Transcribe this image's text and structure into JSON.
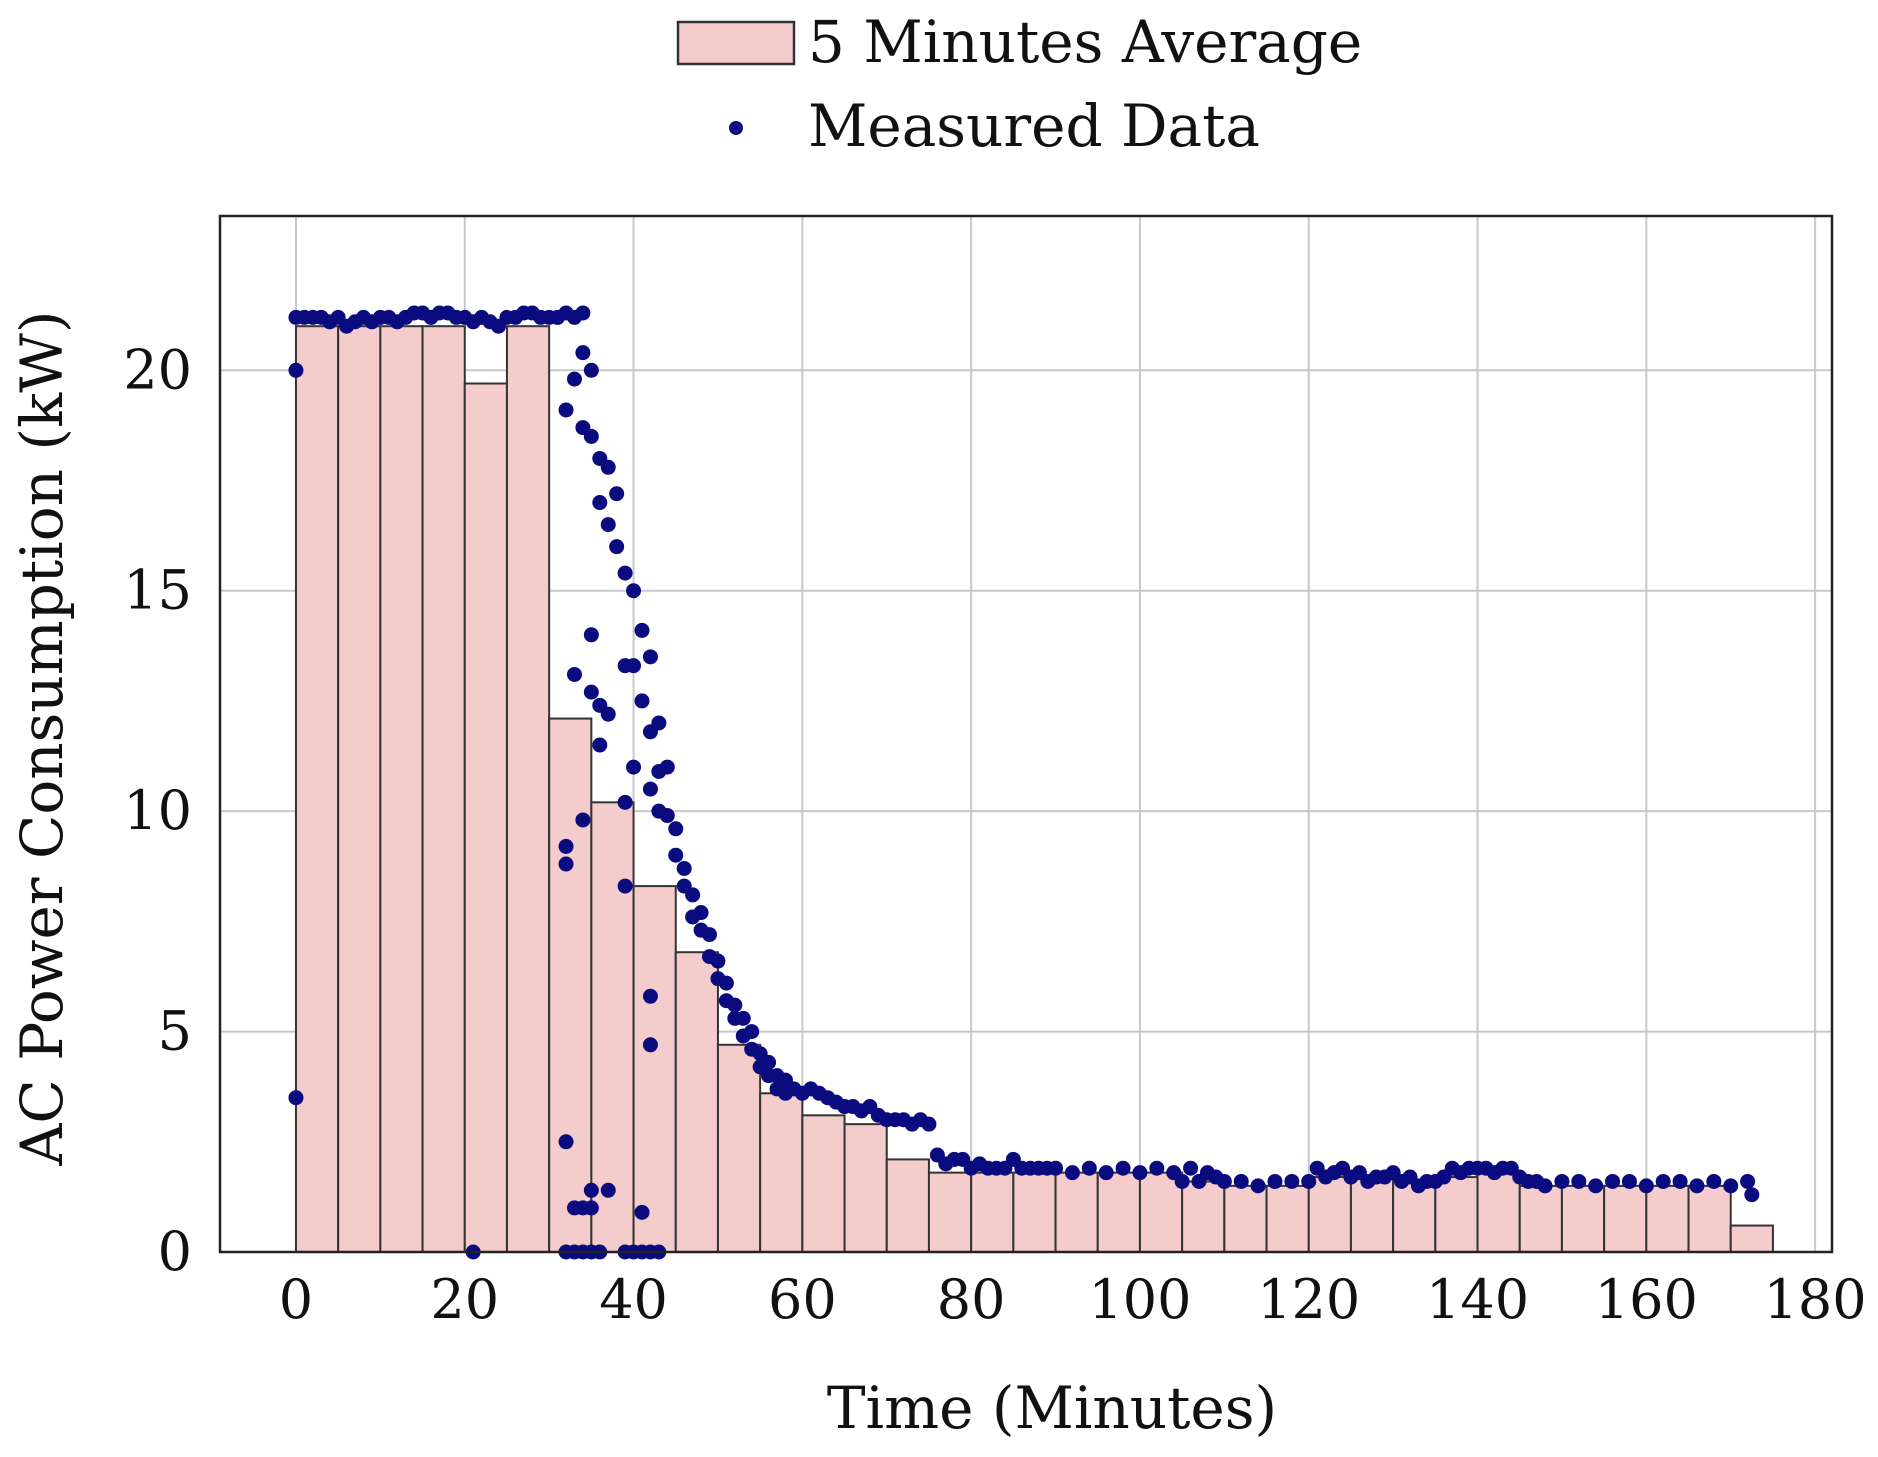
{
  "chart_data": {
    "type": "bar",
    "xlabel": "Time (Minutes)",
    "ylabel": "AC Power Consumption (kW)",
    "xlim": [
      -9,
      182
    ],
    "ylim": [
      0,
      23.5
    ],
    "grid": true,
    "legend_position": "top-center",
    "x_ticks": [
      0,
      20,
      40,
      60,
      80,
      100,
      120,
      140,
      160,
      180
    ],
    "y_ticks": [
      0,
      5,
      10,
      15,
      20
    ],
    "bar_width": 5,
    "colors": {
      "bar_fill": "#f4cccc",
      "bar_edge": "#333333",
      "dot": "#0b0b80"
    },
    "series": [
      {
        "name": "5 Minutes Average",
        "kind": "bar",
        "x_start": [
          0,
          5,
          10,
          15,
          20,
          25,
          30,
          35,
          40,
          45,
          50,
          55,
          60,
          65,
          70,
          75,
          80,
          85,
          90,
          95,
          100,
          105,
          110,
          115,
          120,
          125,
          130,
          135,
          140,
          145,
          150,
          155,
          160,
          165,
          170
        ],
        "values": [
          21.0,
          21.0,
          21.0,
          21.0,
          19.7,
          21.0,
          12.1,
          10.2,
          8.3,
          6.8,
          4.7,
          3.6,
          3.1,
          2.9,
          2.1,
          1.8,
          1.8,
          1.8,
          1.8,
          1.8,
          1.8,
          1.6,
          1.5,
          1.5,
          1.7,
          1.7,
          1.6,
          1.7,
          1.8,
          1.5,
          1.5,
          1.5,
          1.5,
          1.5,
          0.6
        ]
      },
      {
        "name": "Measured Data",
        "kind": "scatter",
        "points": [
          [
            0,
            21.2
          ],
          [
            0,
            20.0
          ],
          [
            0,
            3.5
          ],
          [
            1,
            21.2
          ],
          [
            2,
            21.2
          ],
          [
            3,
            21.2
          ],
          [
            4,
            21.1
          ],
          [
            5,
            21.2
          ],
          [
            6,
            21.0
          ],
          [
            7,
            21.1
          ],
          [
            8,
            21.2
          ],
          [
            9,
            21.1
          ],
          [
            10,
            21.2
          ],
          [
            11,
            21.2
          ],
          [
            12,
            21.1
          ],
          [
            13,
            21.2
          ],
          [
            14,
            21.3
          ],
          [
            15,
            21.3
          ],
          [
            16,
            21.2
          ],
          [
            17,
            21.3
          ],
          [
            18,
            21.3
          ],
          [
            19,
            21.2
          ],
          [
            20,
            21.2
          ],
          [
            21,
            21.1
          ],
          [
            21,
            0.0
          ],
          [
            22,
            21.2
          ],
          [
            23,
            21.1
          ],
          [
            24,
            21.0
          ],
          [
            25,
            21.2
          ],
          [
            26,
            21.2
          ],
          [
            27,
            21.3
          ],
          [
            28,
            21.3
          ],
          [
            29,
            21.2
          ],
          [
            30,
            21.2
          ],
          [
            31,
            21.2
          ],
          [
            32,
            21.3
          ],
          [
            32,
            19.1
          ],
          [
            32,
            9.2
          ],
          [
            32,
            8.8
          ],
          [
            32,
            2.5
          ],
          [
            32,
            0.0
          ],
          [
            33,
            21.2
          ],
          [
            33,
            19.8
          ],
          [
            33,
            13.1
          ],
          [
            33,
            1.0
          ],
          [
            33,
            0.0
          ],
          [
            34,
            21.3
          ],
          [
            34,
            20.4
          ],
          [
            34,
            18.7
          ],
          [
            34,
            9.8
          ],
          [
            34,
            1.0
          ],
          [
            34,
            0.0
          ],
          [
            35,
            20.0
          ],
          [
            35,
            18.5
          ],
          [
            35,
            14.0
          ],
          [
            35,
            12.7
          ],
          [
            35,
            1.4
          ],
          [
            35,
            1.0
          ],
          [
            35,
            0.0
          ],
          [
            36,
            18.0
          ],
          [
            36,
            17.0
          ],
          [
            36,
            12.4
          ],
          [
            36,
            11.5
          ],
          [
            36,
            0.0
          ],
          [
            37,
            17.8
          ],
          [
            37,
            16.5
          ],
          [
            37,
            12.2
          ],
          [
            37,
            1.4
          ],
          [
            38,
            17.2
          ],
          [
            38,
            16.0
          ],
          [
            39,
            15.4
          ],
          [
            39,
            13.3
          ],
          [
            39,
            10.2
          ],
          [
            39,
            8.3
          ],
          [
            39,
            0.0
          ],
          [
            40,
            15.0
          ],
          [
            40,
            13.3
          ],
          [
            40,
            11.0
          ],
          [
            40,
            0.0
          ],
          [
            41,
            14.1
          ],
          [
            41,
            12.5
          ],
          [
            41,
            0.9
          ],
          [
            41,
            0.0
          ],
          [
            42,
            13.5
          ],
          [
            42,
            11.8
          ],
          [
            42,
            10.5
          ],
          [
            42,
            5.8
          ],
          [
            42,
            4.7
          ],
          [
            42,
            0.0
          ],
          [
            43,
            12.0
          ],
          [
            43,
            10.9
          ],
          [
            43,
            10.0
          ],
          [
            43,
            0.0
          ],
          [
            44,
            11.0
          ],
          [
            44,
            9.9
          ],
          [
            45,
            9.6
          ],
          [
            45,
            9.0
          ],
          [
            46,
            8.7
          ],
          [
            46,
            8.3
          ],
          [
            47,
            8.1
          ],
          [
            47,
            7.6
          ],
          [
            48,
            7.7
          ],
          [
            48,
            7.3
          ],
          [
            49,
            7.2
          ],
          [
            49,
            6.7
          ],
          [
            50,
            6.6
          ],
          [
            50,
            6.2
          ],
          [
            51,
            6.1
          ],
          [
            51,
            5.7
          ],
          [
            52,
            5.6
          ],
          [
            52,
            5.3
          ],
          [
            53,
            5.3
          ],
          [
            53,
            4.9
          ],
          [
            54,
            5.0
          ],
          [
            54,
            4.6
          ],
          [
            55,
            4.5
          ],
          [
            55,
            4.2
          ],
          [
            56,
            4.3
          ],
          [
            56,
            4.0
          ],
          [
            57,
            4.0
          ],
          [
            57,
            3.7
          ],
          [
            58,
            3.9
          ],
          [
            58,
            3.6
          ],
          [
            59,
            3.7
          ],
          [
            60,
            3.6
          ],
          [
            61,
            3.7
          ],
          [
            62,
            3.6
          ],
          [
            63,
            3.5
          ],
          [
            64,
            3.4
          ],
          [
            65,
            3.3
          ],
          [
            66,
            3.3
          ],
          [
            67,
            3.2
          ],
          [
            68,
            3.3
          ],
          [
            69,
            3.1
          ],
          [
            70,
            3.0
          ],
          [
            71,
            3.0
          ],
          [
            72,
            3.0
          ],
          [
            73,
            2.9
          ],
          [
            74,
            3.0
          ],
          [
            75,
            2.9
          ],
          [
            76,
            2.2
          ],
          [
            77,
            2.0
          ],
          [
            78,
            2.1
          ],
          [
            79,
            2.1
          ],
          [
            80,
            1.9
          ],
          [
            81,
            2.0
          ],
          [
            82,
            1.9
          ],
          [
            83,
            1.9
          ],
          [
            84,
            1.9
          ],
          [
            85,
            2.1
          ],
          [
            86,
            1.9
          ],
          [
            87,
            1.9
          ],
          [
            88,
            1.9
          ],
          [
            89,
            1.9
          ],
          [
            90,
            1.9
          ],
          [
            92,
            1.8
          ],
          [
            94,
            1.9
          ],
          [
            96,
            1.8
          ],
          [
            98,
            1.9
          ],
          [
            100,
            1.8
          ],
          [
            102,
            1.9
          ],
          [
            104,
            1.8
          ],
          [
            105,
            1.6
          ],
          [
            106,
            1.9
          ],
          [
            107,
            1.6
          ],
          [
            108,
            1.8
          ],
          [
            109,
            1.7
          ],
          [
            110,
            1.6
          ],
          [
            112,
            1.6
          ],
          [
            114,
            1.5
          ],
          [
            116,
            1.6
          ],
          [
            118,
            1.6
          ],
          [
            120,
            1.6
          ],
          [
            121,
            1.9
          ],
          [
            122,
            1.7
          ],
          [
            123,
            1.8
          ],
          [
            124,
            1.9
          ],
          [
            125,
            1.7
          ],
          [
            126,
            1.8
          ],
          [
            127,
            1.6
          ],
          [
            128,
            1.7
          ],
          [
            129,
            1.7
          ],
          [
            130,
            1.8
          ],
          [
            131,
            1.6
          ],
          [
            132,
            1.7
          ],
          [
            133,
            1.5
          ],
          [
            134,
            1.6
          ],
          [
            135,
            1.6
          ],
          [
            136,
            1.7
          ],
          [
            137,
            1.9
          ],
          [
            138,
            1.8
          ],
          [
            139,
            1.9
          ],
          [
            140,
            1.9
          ],
          [
            141,
            1.9
          ],
          [
            142,
            1.8
          ],
          [
            143,
            1.9
          ],
          [
            144,
            1.9
          ],
          [
            145,
            1.7
          ],
          [
            146,
            1.6
          ],
          [
            147,
            1.6
          ],
          [
            148,
            1.5
          ],
          [
            150,
            1.6
          ],
          [
            152,
            1.6
          ],
          [
            154,
            1.5
          ],
          [
            156,
            1.6
          ],
          [
            158,
            1.6
          ],
          [
            160,
            1.5
          ],
          [
            162,
            1.6
          ],
          [
            164,
            1.6
          ],
          [
            166,
            1.5
          ],
          [
            168,
            1.6
          ],
          [
            170,
            1.5
          ],
          [
            172,
            1.6
          ],
          [
            172.5,
            1.3
          ]
        ]
      }
    ]
  }
}
